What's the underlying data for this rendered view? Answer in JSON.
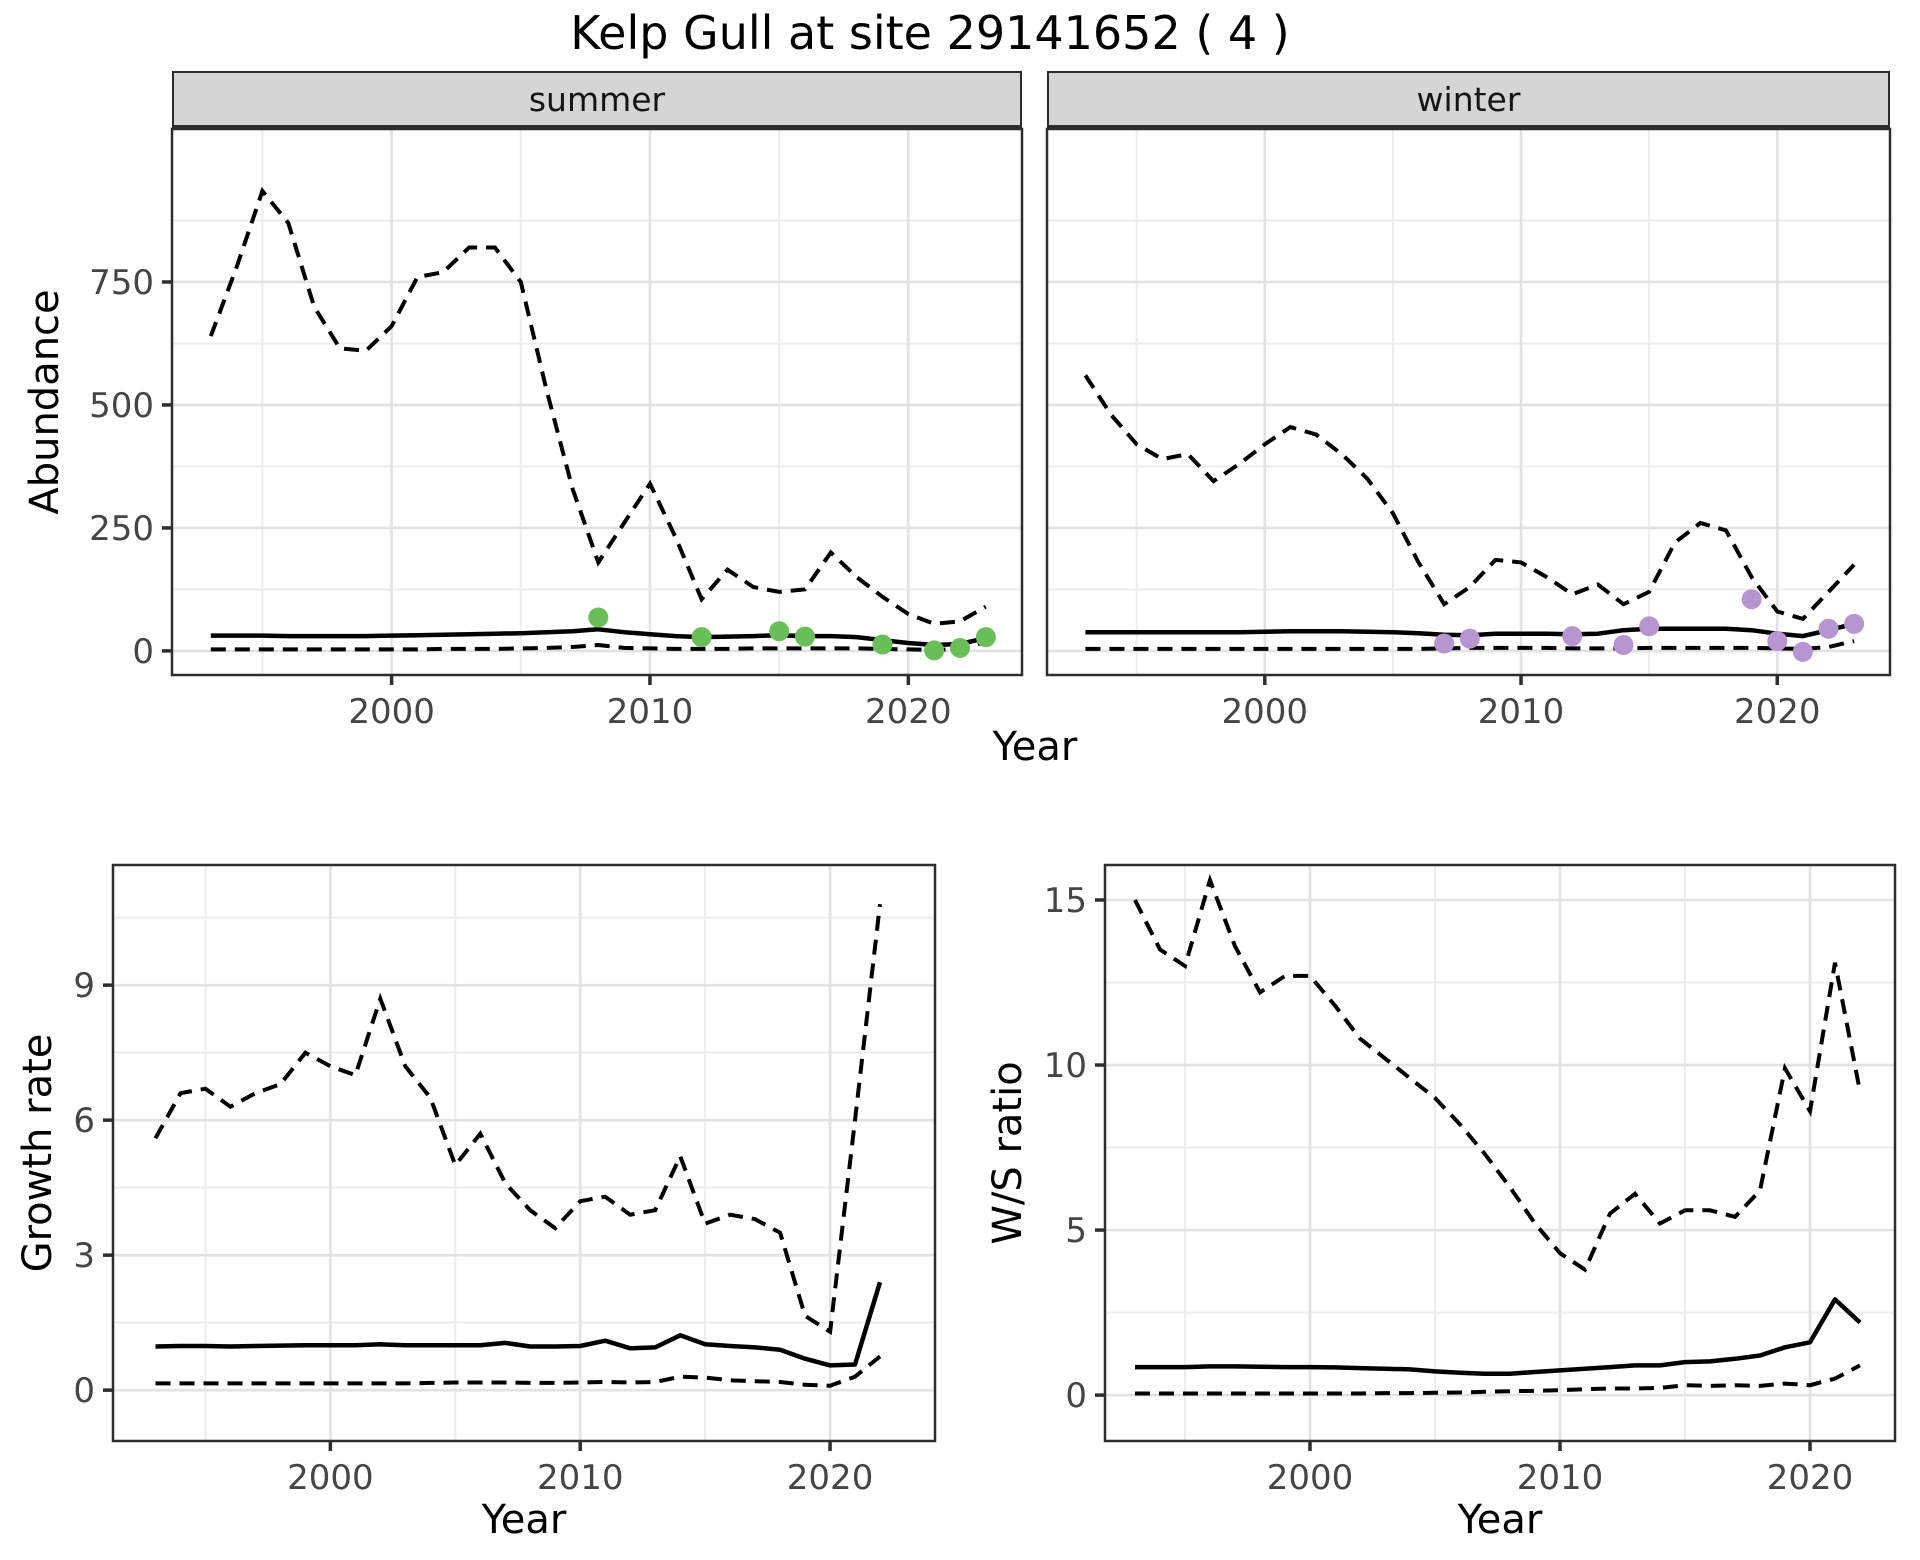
{
  "title": "Kelp Gull at site 29141652 ( 4 )",
  "axis_titles": {
    "abundance": "Abundance",
    "year_top": "Year",
    "growth": "Growth rate",
    "ws": "W/S ratio",
    "year_bottom_left": "Year",
    "year_bottom_right": "Year"
  },
  "styles": {
    "line_color": "#000000",
    "grid_major": "#e2e2e2",
    "grid_minor": "#ededed",
    "panel_border": "#2e2e2e",
    "tick_color": "#2e2e2e",
    "tick_label_color": "#454545",
    "strip_bg": "#d5d5d5",
    "summer_point_color": "#6abe59",
    "winter_point_color": "#b795d1"
  },
  "chart_data": {
    "type": "line",
    "title": "Kelp Gull at site 29141652 ( 4 )",
    "subtitle": "",
    "facet_variable_values": [
      "summer",
      "winter"
    ],
    "legend": "none",
    "grid": "on",
    "panels": [
      {
        "id": "summer",
        "facet_label": "summer",
        "xlabel": "Year",
        "ylabel": "Abundance",
        "xlim": [
          1991.5,
          2024.4
        ],
        "ylim": [
          -49,
          1061
        ],
        "x_ticks": [
          2000,
          2010,
          2020
        ],
        "x_minor": [
          1995,
          2005,
          2015
        ],
        "y_ticks": [
          0,
          250,
          500,
          750
        ],
        "y_minor": [
          125,
          375,
          625,
          875
        ],
        "show_x_tick_labels": true,
        "show_y_tick_labels": true,
        "years": [
          1993,
          1994,
          1995,
          1996,
          1997,
          1998,
          1999,
          2000,
          2001,
          2002,
          2003,
          2004,
          2005,
          2006,
          2007,
          2008,
          2009,
          2010,
          2011,
          2012,
          2013,
          2014,
          2015,
          2016,
          2017,
          2018,
          2019,
          2020,
          2021,
          2022,
          2023
        ],
        "upper_ci": [
          640,
          780,
          935,
          870,
          700,
          615,
          610,
          660,
          760,
          770,
          820,
          820,
          750,
          530,
          330,
          180,
          260,
          340,
          230,
          105,
          165,
          130,
          120,
          125,
          200,
          150,
          110,
          75,
          55,
          60,
          90
        ],
        "median": [
          31,
          31,
          31,
          30,
          30,
          30,
          30,
          31,
          32,
          33,
          34,
          35,
          36,
          38,
          40,
          44,
          38,
          34,
          30,
          28,
          29,
          30,
          32,
          30,
          30,
          28,
          22,
          16,
          12,
          14,
          26
        ],
        "lower_ci": [
          3,
          3,
          3,
          3,
          3,
          3,
          3,
          3,
          3,
          4,
          4,
          4,
          5,
          6,
          8,
          12,
          6,
          5,
          4,
          4,
          4,
          5,
          5,
          5,
          5,
          5,
          4,
          3,
          2,
          4,
          18
        ],
        "points": {
          "years": [
            2008,
            2012,
            2015,
            2016,
            2019,
            2021,
            2022,
            2023
          ],
          "values": [
            68,
            28,
            40,
            29,
            13,
            1,
            6,
            28
          ],
          "color": "#6abe59"
        }
      },
      {
        "id": "winter",
        "facet_label": "winter",
        "xlabel": "Year",
        "ylabel": "Abundance",
        "xlim": [
          1991.5,
          2024.4
        ],
        "ylim": [
          -49,
          1061
        ],
        "x_ticks": [
          2000,
          2010,
          2020
        ],
        "x_minor": [
          1995,
          2005,
          2015
        ],
        "y_ticks": [
          0,
          250,
          500,
          750
        ],
        "y_minor": [
          125,
          375,
          625,
          875
        ],
        "show_x_tick_labels": true,
        "show_y_tick_labels": false,
        "years": [
          1993,
          1994,
          1995,
          1996,
          1997,
          1998,
          1999,
          2000,
          2001,
          2002,
          2003,
          2004,
          2005,
          2006,
          2007,
          2008,
          2009,
          2010,
          2011,
          2012,
          2013,
          2014,
          2015,
          2016,
          2017,
          2018,
          2019,
          2020,
          2021,
          2022,
          2023
        ],
        "upper_ci": [
          560,
          480,
          420,
          390,
          400,
          345,
          380,
          420,
          455,
          440,
          400,
          350,
          280,
          180,
          95,
          130,
          185,
          180,
          150,
          115,
          135,
          95,
          120,
          220,
          260,
          245,
          150,
          80,
          65,
          120,
          175
        ],
        "median": [
          38,
          38,
          38,
          38,
          38,
          38,
          38,
          39,
          40,
          40,
          40,
          39,
          38,
          36,
          33,
          32,
          35,
          35,
          35,
          34,
          35,
          42,
          45,
          45,
          45,
          45,
          42,
          35,
          30,
          42,
          55
        ],
        "lower_ci": [
          4,
          4,
          4,
          4,
          4,
          4,
          4,
          4,
          4,
          4,
          4,
          4,
          4,
          4,
          5,
          6,
          6,
          6,
          6,
          5,
          5,
          5,
          6,
          6,
          6,
          6,
          6,
          5,
          4,
          8,
          20
        ],
        "points": {
          "years": [
            2007,
            2008,
            2012,
            2014,
            2015,
            2019,
            2020,
            2021,
            2022,
            2023
          ],
          "values": [
            15,
            25,
            30,
            12,
            50,
            105,
            20,
            -2,
            45,
            55
          ],
          "color": "#b795d1"
        }
      },
      {
        "id": "growth",
        "facet_label": "",
        "xlabel": "Year",
        "ylabel": "Growth rate",
        "xlim": [
          1991.3,
          2024.2
        ],
        "ylim": [
          -1.13,
          11.67
        ],
        "x_ticks": [
          2000,
          2010,
          2020
        ],
        "x_minor": [
          1995,
          2005,
          2015
        ],
        "y_ticks": [
          0,
          3,
          6,
          9
        ],
        "y_minor": [
          1.5,
          4.5,
          7.5,
          10.5
        ],
        "show_x_tick_labels": true,
        "show_y_tick_labels": true,
        "years": [
          1993,
          1994,
          1995,
          1996,
          1997,
          1998,
          1999,
          2000,
          2001,
          2002,
          2003,
          2004,
          2005,
          2006,
          2007,
          2008,
          2009,
          2010,
          2011,
          2012,
          2013,
          2014,
          2015,
          2016,
          2017,
          2018,
          2019,
          2020,
          2021,
          2022
        ],
        "upper_ci": [
          5.6,
          6.6,
          6.7,
          6.3,
          6.6,
          6.8,
          7.5,
          7.2,
          7.0,
          8.7,
          7.2,
          6.5,
          5.0,
          5.7,
          4.6,
          4.0,
          3.6,
          4.2,
          4.3,
          3.9,
          4.0,
          5.2,
          3.7,
          3.9,
          3.8,
          3.5,
          1.65,
          1.3,
          6.0,
          10.8
        ],
        "median": [
          0.97,
          0.98,
          0.98,
          0.97,
          0.98,
          0.99,
          1.0,
          1.0,
          1.0,
          1.02,
          1.0,
          1.0,
          1.0,
          1.0,
          1.05,
          0.97,
          0.97,
          0.98,
          1.1,
          0.93,
          0.95,
          1.22,
          1.02,
          0.98,
          0.95,
          0.9,
          0.7,
          0.55,
          0.57,
          2.4
        ],
        "lower_ci": [
          0.15,
          0.15,
          0.15,
          0.15,
          0.15,
          0.15,
          0.15,
          0.15,
          0.15,
          0.15,
          0.15,
          0.16,
          0.17,
          0.17,
          0.17,
          0.16,
          0.16,
          0.17,
          0.18,
          0.17,
          0.18,
          0.3,
          0.28,
          0.22,
          0.2,
          0.18,
          0.12,
          0.1,
          0.3,
          0.75
        ],
        "points": {
          "years": [],
          "values": [],
          "color": "#000000"
        }
      },
      {
        "id": "ws",
        "facet_label": "",
        "xlabel": "Year",
        "ylabel": "W/S ratio",
        "xlim": [
          1991.8,
          2023.4
        ],
        "ylim": [
          -1.39,
          16.06
        ],
        "x_ticks": [
          2000,
          2010,
          2020
        ],
        "x_minor": [
          1995,
          2005,
          2015
        ],
        "y_ticks": [
          0,
          5,
          10,
          15
        ],
        "y_minor": [
          2.5,
          7.5,
          12.5
        ],
        "show_x_tick_labels": true,
        "show_y_tick_labels": true,
        "years": [
          1993,
          1994,
          1995,
          1996,
          1997,
          1998,
          1999,
          2000,
          2001,
          2002,
          2003,
          2004,
          2005,
          2006,
          2007,
          2008,
          2009,
          2010,
          2011,
          2012,
          2013,
          2014,
          2015,
          2016,
          2017,
          2018,
          2019,
          2020,
          2021,
          2022
        ],
        "upper_ci": [
          15.0,
          13.5,
          13.0,
          15.6,
          13.6,
          12.2,
          12.7,
          12.7,
          11.8,
          10.8,
          10.2,
          9.6,
          9.0,
          8.2,
          7.3,
          6.3,
          5.2,
          4.3,
          3.8,
          5.5,
          6.1,
          5.2,
          5.6,
          5.6,
          5.4,
          6.2,
          9.9,
          8.6,
          13.1,
          9.2
        ],
        "median": [
          0.85,
          0.85,
          0.85,
          0.87,
          0.87,
          0.86,
          0.85,
          0.85,
          0.84,
          0.82,
          0.8,
          0.78,
          0.72,
          0.68,
          0.65,
          0.65,
          0.7,
          0.75,
          0.8,
          0.85,
          0.9,
          0.9,
          1.0,
          1.02,
          1.1,
          1.2,
          1.45,
          1.6,
          2.9,
          2.2
        ],
        "lower_ci": [
          0.05,
          0.05,
          0.05,
          0.05,
          0.05,
          0.05,
          0.05,
          0.05,
          0.05,
          0.05,
          0.06,
          0.06,
          0.07,
          0.08,
          0.1,
          0.12,
          0.13,
          0.15,
          0.18,
          0.2,
          0.2,
          0.22,
          0.3,
          0.28,
          0.3,
          0.28,
          0.35,
          0.3,
          0.5,
          0.9
        ],
        "points": {
          "years": [],
          "values": [],
          "color": "#000000"
        }
      }
    ]
  }
}
